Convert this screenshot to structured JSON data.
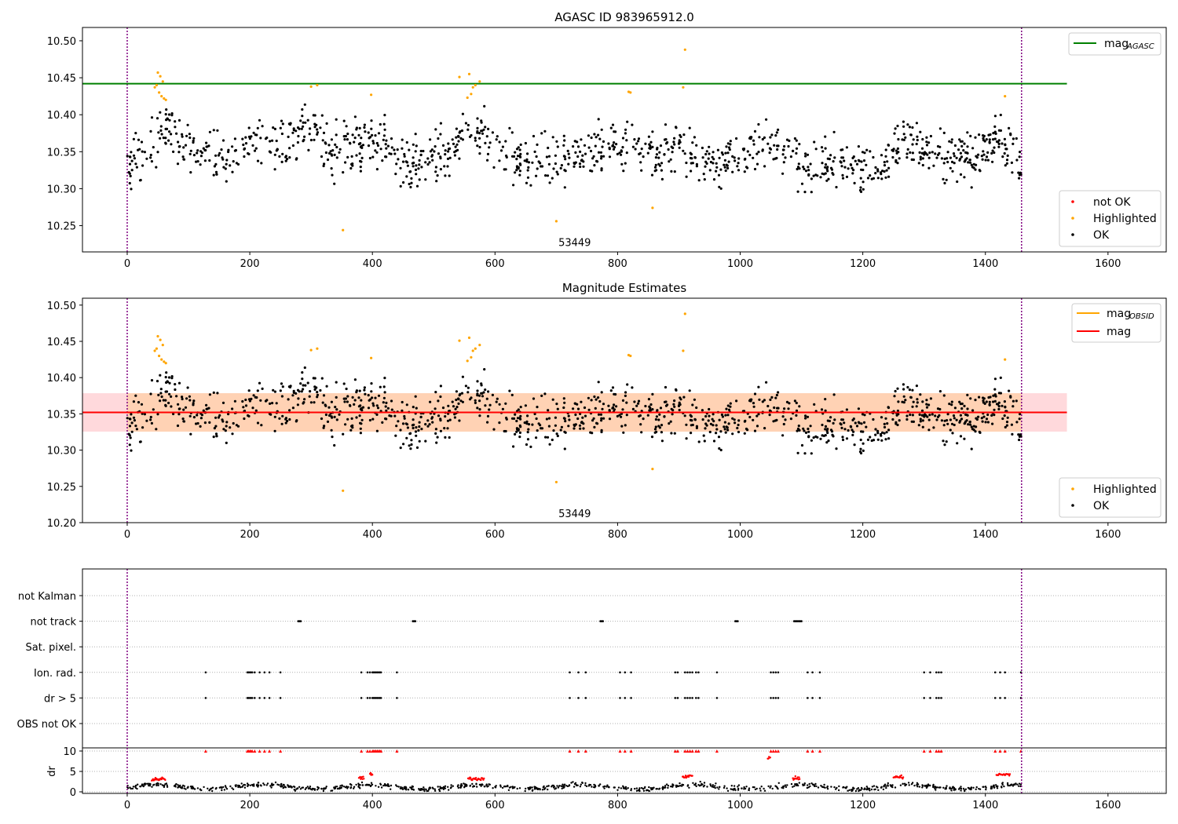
{
  "colors": {
    "ok": "#000000",
    "highlighted": "#ffa500",
    "not_ok": "#ff0000",
    "agasc_line": "#008000",
    "mag_line": "#ff0000",
    "mag_obsid_line": "#ffa500",
    "band_outer": "#ffd9dc",
    "band_inner": "#ffd2b4",
    "obs_boundary": "#800080",
    "grid": "#b0b0b0"
  },
  "chart_data": [
    {
      "type": "scatter",
      "title": "AGASC ID 983965912.0",
      "xlabel": "",
      "ylabel": "",
      "xlim": [
        -73,
        1695
      ],
      "ylim": [
        10.2145,
        10.518
      ],
      "xticks": [
        "0",
        "200",
        "400",
        "600",
        "800",
        "1000",
        "1200",
        "1400",
        "1600"
      ],
      "yticks": [
        "10.25",
        "10.30",
        "10.35",
        "10.40",
        "10.45",
        "10.50"
      ],
      "obs_boundaries": [
        0,
        1459
      ],
      "obsid_label": {
        "text": "53449",
        "x": 730,
        "y": 10.2225
      },
      "agasc_mag": 10.442,
      "line_x_range": [
        -73,
        1533
      ],
      "legend_lines": [
        {
          "label": "mag",
          "sub": "AGASC",
          "color": "#008000"
        }
      ],
      "legend_points": [
        {
          "label": "not OK",
          "color": "#ff0000"
        },
        {
          "label": "Highlighted",
          "color": "#ffa500"
        },
        {
          "label": "OK",
          "color": "#000000"
        }
      ],
      "series": [
        {
          "name": "not OK",
          "points": []
        },
        {
          "name": "Highlighted",
          "points": [
            [
              45,
              10.437
            ],
            [
              48,
              10.44
            ],
            [
              50,
              10.457
            ],
            [
              52,
              10.43
            ],
            [
              54,
              10.452
            ],
            [
              56,
              10.425
            ],
            [
              58,
              10.445
            ],
            [
              60,
              10.422
            ],
            [
              63,
              10.42
            ],
            [
              300,
              10.438
            ],
            [
              310,
              10.44
            ],
            [
              352,
              10.244
            ],
            [
              398,
              10.427
            ],
            [
              542,
              10.451
            ],
            [
              555,
              10.423
            ],
            [
              558,
              10.455
            ],
            [
              561,
              10.428
            ],
            [
              564,
              10.437
            ],
            [
              568,
              10.44
            ],
            [
              575,
              10.445
            ],
            [
              700,
              10.256
            ],
            [
              818,
              10.431
            ],
            [
              821,
              10.43
            ],
            [
              857,
              10.274
            ],
            [
              907,
              10.437
            ],
            [
              910,
              10.488
            ],
            [
              1432,
              10.425
            ]
          ]
        }
      ],
      "ok_trend": [
        [
          0,
          10.335
        ],
        [
          30,
          10.338
        ],
        [
          60,
          10.385
        ],
        [
          90,
          10.368
        ],
        [
          120,
          10.345
        ],
        [
          160,
          10.342
        ],
        [
          200,
          10.36
        ],
        [
          240,
          10.352
        ],
        [
          280,
          10.37
        ],
        [
          300,
          10.385
        ],
        [
          330,
          10.35
        ],
        [
          360,
          10.355
        ],
        [
          400,
          10.37
        ],
        [
          430,
          10.34
        ],
        [
          470,
          10.335
        ],
        [
          520,
          10.345
        ],
        [
          545,
          10.37
        ],
        [
          565,
          10.39
        ],
        [
          590,
          10.36
        ],
        [
          620,
          10.34
        ],
        [
          660,
          10.335
        ],
        [
          700,
          10.34
        ],
        [
          740,
          10.345
        ],
        [
          780,
          10.355
        ],
        [
          820,
          10.36
        ],
        [
          860,
          10.34
        ],
        [
          900,
          10.365
        ],
        [
          920,
          10.345
        ],
        [
          960,
          10.33
        ],
        [
          1000,
          10.345
        ],
        [
          1040,
          10.36
        ],
        [
          1080,
          10.36
        ],
        [
          1100,
          10.33
        ],
        [
          1140,
          10.338
        ],
        [
          1170,
          10.335
        ],
        [
          1200,
          10.325
        ],
        [
          1240,
          10.34
        ],
        [
          1270,
          10.375
        ],
        [
          1300,
          10.355
        ],
        [
          1340,
          10.345
        ],
        [
          1380,
          10.345
        ],
        [
          1420,
          10.365
        ],
        [
          1450,
          10.34
        ],
        [
          1459,
          10.335
        ]
      ],
      "ok_count": 1180
    },
    {
      "type": "scatter",
      "title": "Magnitude Estimates",
      "xlabel": "",
      "ylabel": "",
      "xlim": [
        -73,
        1695
      ],
      "ylim": [
        10.2,
        10.5095
      ],
      "xticks": [
        "0",
        "200",
        "400",
        "600",
        "800",
        "1000",
        "1200",
        "1400",
        "1600"
      ],
      "yticks": [
        "10.20",
        "10.25",
        "10.30",
        "10.35",
        "10.40",
        "10.45",
        "10.50"
      ],
      "obs_boundaries": [
        0,
        1459
      ],
      "obsid_label": {
        "text": "53449",
        "x": 730,
        "y": 10.2075
      },
      "mag": 10.352,
      "mag_band": [
        10.3255,
        10.3785
      ],
      "mag_band_inner": [
        10.3255,
        10.3785
      ],
      "mag_obsid": 10.352,
      "line_x_range": [
        -73,
        1533
      ],
      "legend_lines": [
        {
          "label": "mag",
          "sub": "OBSID",
          "color": "#ffa500"
        },
        {
          "label": "mag",
          "sub": "",
          "color": "#ff0000"
        }
      ],
      "legend_points": [
        {
          "label": "Highlighted",
          "color": "#ffa500"
        },
        {
          "label": "OK",
          "color": "#000000"
        }
      ]
    },
    {
      "type": "scatter",
      "title": "",
      "xlabel": "",
      "ylabel": "",
      "xlim": [
        -73,
        1695
      ],
      "flag_rows": [
        "not Kalman",
        "not track",
        "Sat. pixel.",
        "Ion. rad.",
        "dr > 5",
        "OBS not OK"
      ],
      "flag_points": {
        "not track": [
          279,
          281,
          283,
          466,
          468,
          470,
          772,
          774,
          776,
          992,
          994,
          996,
          1088,
          1090,
          1092,
          1094,
          1096,
          1098,
          1100
        ],
        "Ion. rad.": [
          128,
          196,
          198,
          200,
          202,
          204,
          208,
          216,
          224,
          232,
          250,
          382,
          392,
          396,
          400,
          402,
          404,
          406,
          408,
          410,
          412,
          414,
          440,
          722,
          736,
          748,
          804,
          812,
          822,
          894,
          898,
          910,
          914,
          918,
          922,
          928,
          932,
          962,
          1050,
          1054,
          1058,
          1062,
          1110,
          1118,
          1130,
          1300,
          1310,
          1320,
          1324,
          1328,
          1416,
          1424,
          1432,
          1458
        ],
        "dr > 5": [
          128,
          196,
          198,
          200,
          202,
          204,
          208,
          216,
          224,
          232,
          250,
          382,
          392,
          396,
          400,
          402,
          404,
          406,
          408,
          410,
          412,
          414,
          440,
          722,
          736,
          748,
          804,
          812,
          822,
          894,
          898,
          910,
          914,
          918,
          922,
          928,
          932,
          962,
          1050,
          1054,
          1058,
          1062,
          1110,
          1118,
          1130,
          1300,
          1310,
          1320,
          1324,
          1328,
          1416,
          1424,
          1432,
          1458
        ]
      },
      "dr": {
        "ylabel": "dr",
        "ylim": [
          -0.5,
          10.5
        ],
        "yticks": [
          "0",
          "5",
          "10"
        ],
        "clip": 10,
        "red_clusters": [
          [
            40,
            62,
            3.1
          ],
          [
            378,
            386,
            3.4
          ],
          [
            396,
            400,
            4.2
          ],
          [
            556,
            582,
            3.2
          ],
          [
            906,
            922,
            3.8
          ],
          [
            1045,
            1049,
            8.4
          ],
          [
            1086,
            1097,
            3.3
          ],
          [
            1250,
            1266,
            3.6
          ],
          [
            1418,
            1440,
            4.2
          ]
        ]
      }
    }
  ]
}
